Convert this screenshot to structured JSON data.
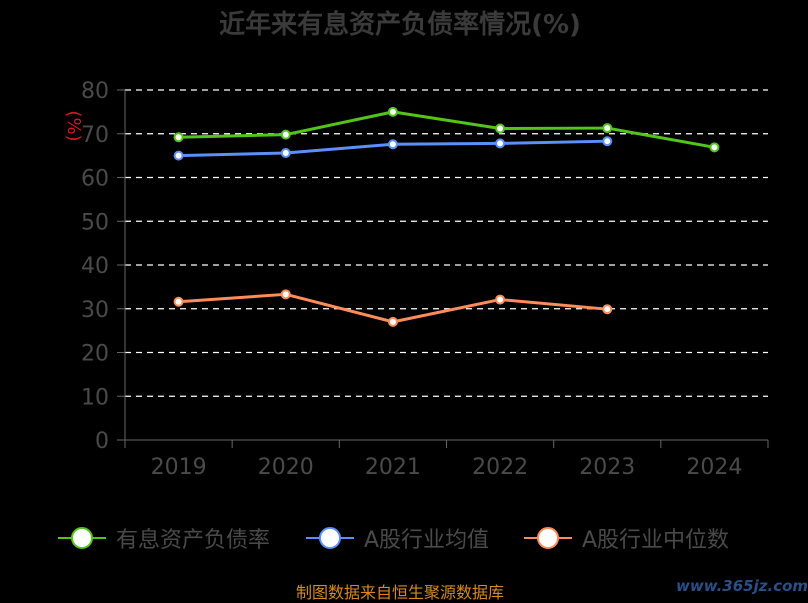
{
  "title": "近年来有息资产负债率情况(%)",
  "unit_label": "(%)",
  "source": "制图数据来自恒生聚源数据库",
  "watermark": "www.365jz.com",
  "chart_data": {
    "type": "line",
    "x": [
      "2019",
      "2020",
      "2021",
      "2022",
      "2023",
      "2024"
    ],
    "ylim": [
      0,
      80
    ],
    "yticks": [
      0,
      10,
      20,
      30,
      40,
      50,
      60,
      70,
      80
    ],
    "grid": true,
    "legend_position": "bottom",
    "series": [
      {
        "name": "有息资产负债率",
        "color": "#52c41a",
        "values": [
          69.2,
          69.8,
          75.0,
          71.2,
          71.3,
          66.9
        ]
      },
      {
        "name": "A股行业均值",
        "color": "#5b8ff9",
        "values": [
          65.0,
          65.6,
          67.6,
          67.8,
          68.3,
          null
        ]
      },
      {
        "name": "A股行业中位数",
        "color": "#ff8c5a",
        "values": [
          31.6,
          33.3,
          27.0,
          32.1,
          29.9,
          null
        ]
      }
    ]
  }
}
